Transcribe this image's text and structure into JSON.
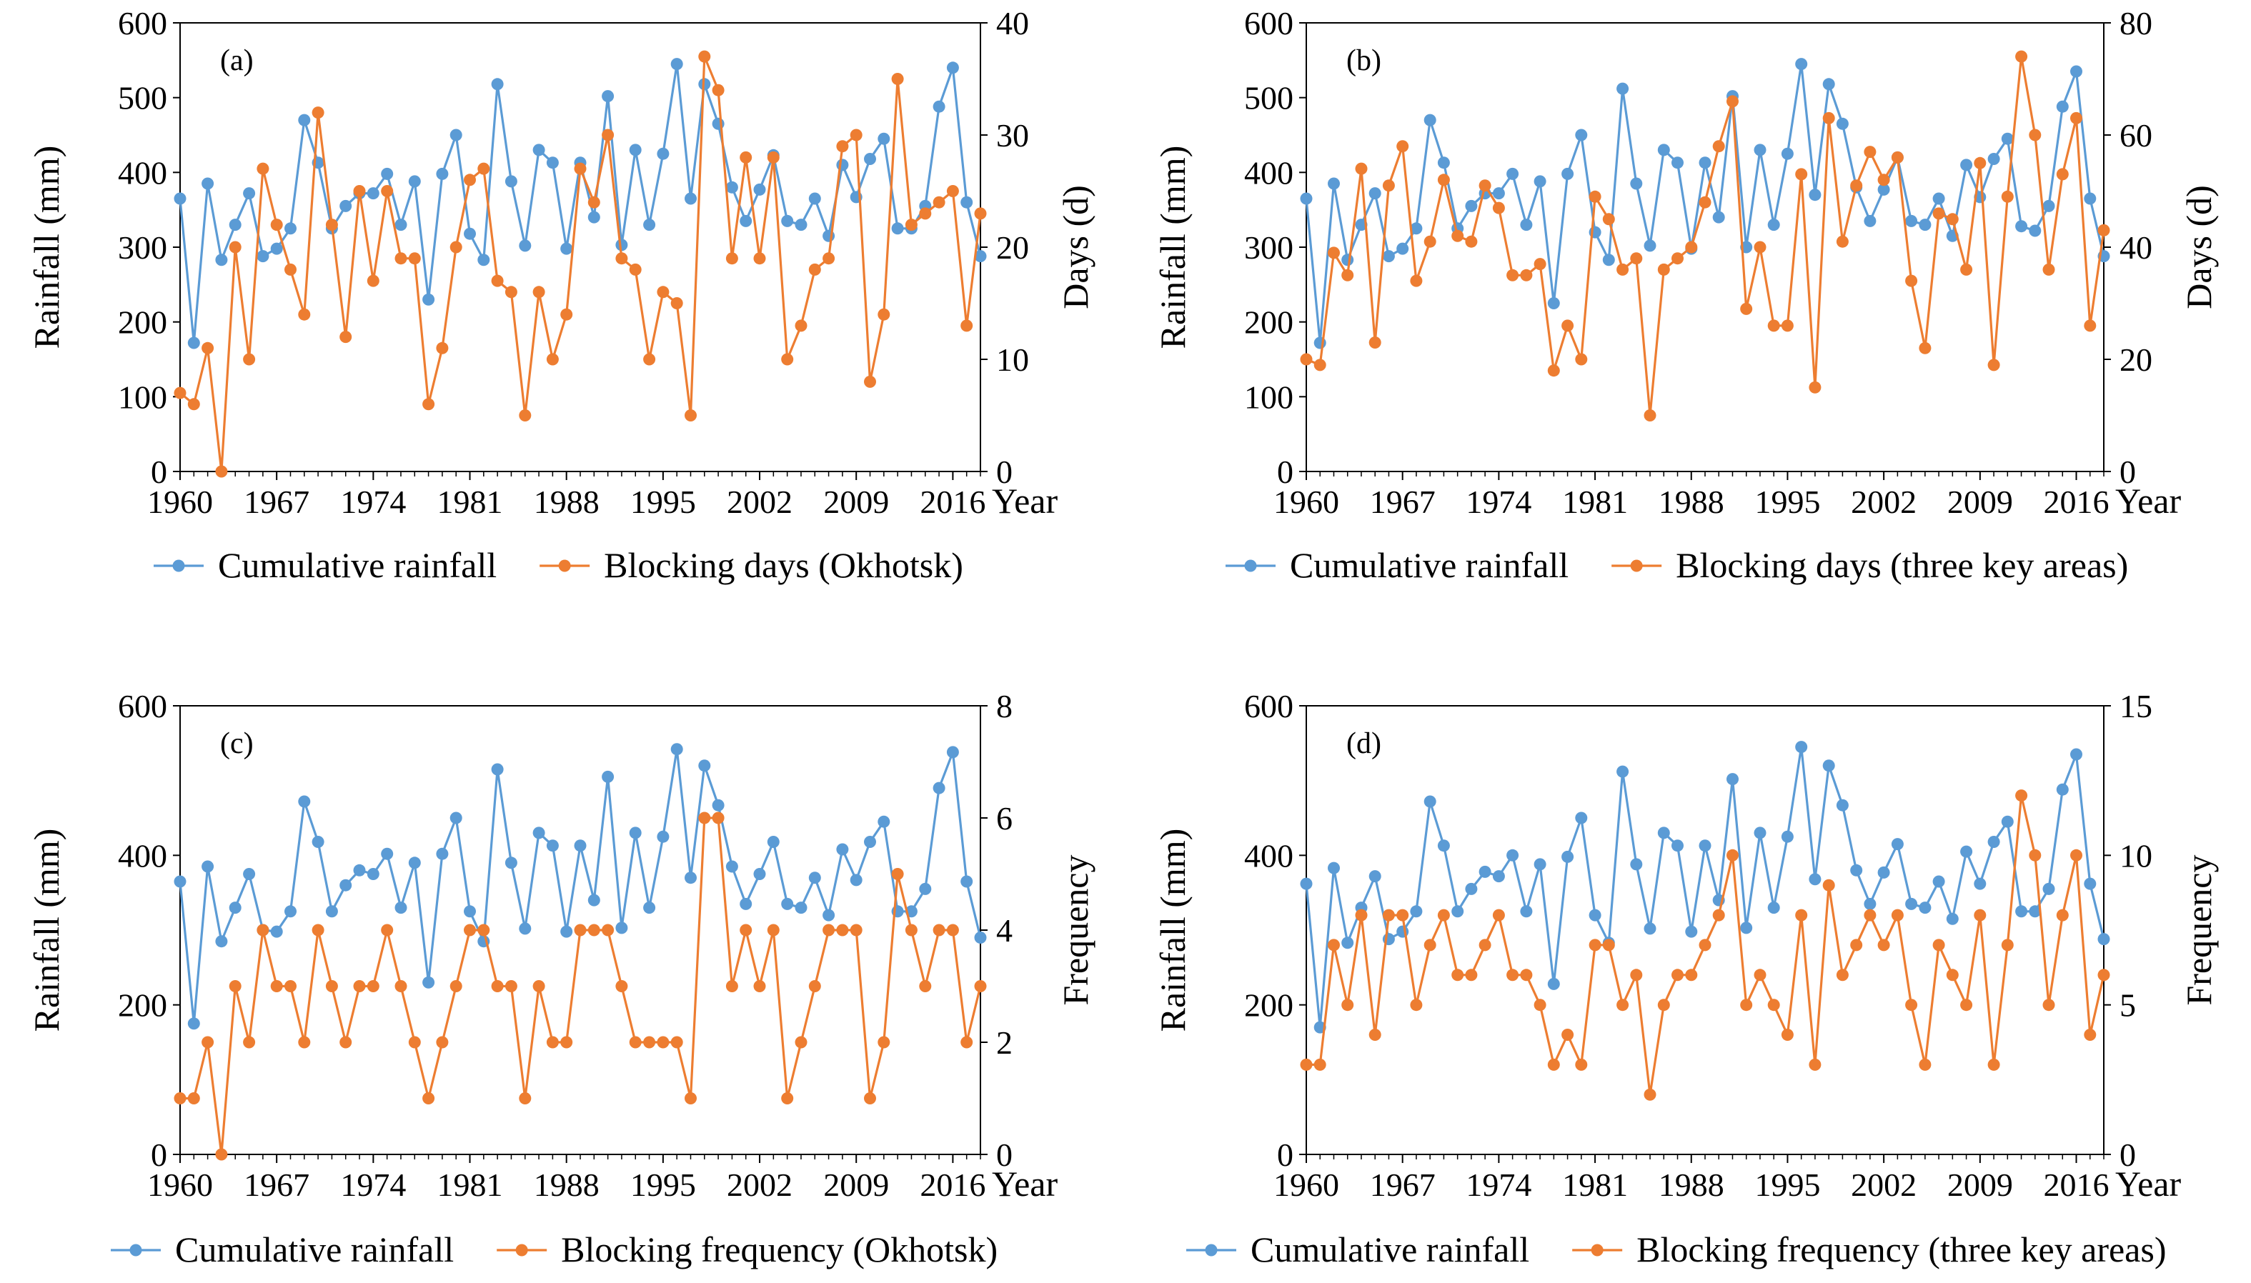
{
  "figure": {
    "x_axis_label": "Year",
    "series_colors": {
      "rainfall": "#5B9BD5",
      "blocking": "#ED7D31"
    }
  },
  "chart_data": [
    {
      "type": "line",
      "panel_label": "(a)",
      "x": [
        1960,
        1961,
        1962,
        1963,
        1964,
        1965,
        1966,
        1967,
        1968,
        1969,
        1970,
        1971,
        1972,
        1973,
        1974,
        1975,
        1976,
        1977,
        1978,
        1979,
        1980,
        1981,
        1982,
        1983,
        1984,
        1985,
        1986,
        1987,
        1988,
        1989,
        1990,
        1991,
        1992,
        1993,
        1994,
        1995,
        1996,
        1997,
        1998,
        1999,
        2000,
        2001,
        2002,
        2003,
        2004,
        2005,
        2006,
        2007,
        2008,
        2009,
        2010,
        2011,
        2012,
        2013,
        2014,
        2015,
        2016,
        2017,
        2018
      ],
      "x_ticks": [
        "1960",
        "1967",
        "1974",
        "1981",
        "1988",
        "1995",
        "2002",
        "2009",
        "2016"
      ],
      "xlabel": "Year",
      "ylabel": "Rainfall (mm)",
      "y2label": "Days (d)",
      "ylim": [
        0,
        600
      ],
      "y_ticks": [
        "0",
        "100",
        "200",
        "300",
        "400",
        "500",
        "600"
      ],
      "y2lim": [
        0,
        40
      ],
      "y2_ticks": [
        "0",
        "10",
        "20",
        "30",
        "40"
      ],
      "series": [
        {
          "name": "Cumulative rainfall",
          "axis": "left",
          "color": "#5B9BD5",
          "values": [
            365,
            172,
            385,
            283,
            330,
            372,
            288,
            298,
            325,
            470,
            413,
            325,
            355,
            372,
            372,
            398,
            330,
            388,
            230,
            398,
            450,
            318,
            283,
            518,
            388,
            302,
            430,
            413,
            298,
            413,
            340,
            502,
            303,
            430,
            330,
            425,
            545,
            365,
            518,
            465,
            380,
            335,
            377,
            423,
            335,
            330,
            365,
            315,
            410,
            367,
            418,
            445,
            325,
            325,
            355,
            488,
            540,
            360,
            288
          ]
        },
        {
          "name": "Blocking days (Okhotsk)",
          "axis": "right",
          "color": "#ED7D31",
          "values": [
            7,
            6,
            11,
            0,
            20,
            10,
            27,
            22,
            18,
            14,
            32,
            22,
            12,
            25,
            17,
            25,
            19,
            19,
            6,
            11,
            20,
            26,
            27,
            17,
            16,
            5,
            16,
            10,
            14,
            27,
            24,
            30,
            19,
            18,
            10,
            16,
            15,
            5,
            37,
            34,
            19,
            28,
            19,
            28,
            10,
            13,
            18,
            19,
            29,
            30,
            8,
            14,
            35,
            22,
            23,
            24,
            25,
            13,
            23
          ]
        }
      ],
      "legend": [
        "Cumulative rainfall",
        "Blocking days (Okhotsk)"
      ]
    },
    {
      "type": "line",
      "panel_label": "(b)",
      "x": [
        1960,
        1961,
        1962,
        1963,
        1964,
        1965,
        1966,
        1967,
        1968,
        1969,
        1970,
        1971,
        1972,
        1973,
        1974,
        1975,
        1976,
        1977,
        1978,
        1979,
        1980,
        1981,
        1982,
        1983,
        1984,
        1985,
        1986,
        1987,
        1988,
        1989,
        1990,
        1991,
        1992,
        1993,
        1994,
        1995,
        1996,
        1997,
        1998,
        1999,
        2000,
        2001,
        2002,
        2003,
        2004,
        2005,
        2006,
        2007,
        2008,
        2009,
        2010,
        2011,
        2012,
        2013,
        2014,
        2015,
        2016,
        2017,
        2018
      ],
      "x_ticks": [
        "1960",
        "1967",
        "1974",
        "1981",
        "1988",
        "1995",
        "2002",
        "2009",
        "2016"
      ],
      "xlabel": "Year",
      "ylabel": "Rainfall (mm)",
      "y2label": "Days (d)",
      "ylim": [
        0,
        600
      ],
      "y_ticks": [
        "0",
        "100",
        "200",
        "300",
        "400",
        "500",
        "600"
      ],
      "y2lim": [
        0,
        80
      ],
      "y2_ticks": [
        "0",
        "20",
        "40",
        "60",
        "80"
      ],
      "series": [
        {
          "name": "Cumulative rainfall",
          "axis": "left",
          "color": "#5B9BD5",
          "values": [
            365,
            172,
            385,
            283,
            330,
            372,
            288,
            298,
            325,
            470,
            413,
            325,
            355,
            372,
            372,
            398,
            330,
            388,
            225,
            398,
            450,
            320,
            283,
            512,
            385,
            302,
            430,
            413,
            298,
            413,
            340,
            502,
            300,
            430,
            330,
            425,
            545,
            370,
            518,
            465,
            380,
            335,
            377,
            420,
            335,
            330,
            365,
            315,
            410,
            367,
            418,
            445,
            328,
            322,
            355,
            488,
            535,
            365,
            288
          ]
        },
        {
          "name": "Blocking days (three key areas)",
          "axis": "right",
          "color": "#ED7D31",
          "values": [
            20,
            19,
            39,
            35,
            54,
            23,
            51,
            58,
            34,
            41,
            52,
            42,
            41,
            51,
            47,
            35,
            35,
            37,
            18,
            26,
            20,
            49,
            45,
            36,
            38,
            10,
            36,
            38,
            40,
            48,
            58,
            66,
            29,
            40,
            26,
            26,
            53,
            15,
            63,
            41,
            51,
            57,
            52,
            56,
            34,
            22,
            46,
            45,
            36,
            55,
            19,
            49,
            74,
            60,
            36,
            53,
            63,
            26,
            43
          ]
        }
      ],
      "legend": [
        "Cumulative rainfall",
        "Blocking days (three key areas)"
      ]
    },
    {
      "type": "line",
      "panel_label": "(c)",
      "x": [
        1960,
        1961,
        1962,
        1963,
        1964,
        1965,
        1966,
        1967,
        1968,
        1969,
        1970,
        1971,
        1972,
        1973,
        1974,
        1975,
        1976,
        1977,
        1978,
        1979,
        1980,
        1981,
        1982,
        1983,
        1984,
        1985,
        1986,
        1987,
        1988,
        1989,
        1990,
        1991,
        1992,
        1993,
        1994,
        1995,
        1996,
        1997,
        1998,
        1999,
        2000,
        2001,
        2002,
        2003,
        2004,
        2005,
        2006,
        2007,
        2008,
        2009,
        2010,
        2011,
        2012,
        2013,
        2014,
        2015,
        2016,
        2017,
        2018
      ],
      "x_ticks": [
        "1960",
        "1967",
        "1974",
        "1981",
        "1988",
        "1995",
        "2002",
        "2009",
        "2016"
      ],
      "xlabel": "Year",
      "ylabel": "Rainfall (mm)",
      "y2label": "Frequency",
      "ylim": [
        0,
        600
      ],
      "y_ticks": [
        "0",
        "200",
        "400",
        "600"
      ],
      "y2lim": [
        0,
        8
      ],
      "y2_ticks": [
        "0",
        "2",
        "4",
        "6",
        "8"
      ],
      "series": [
        {
          "name": "Cumulative rainfall",
          "axis": "left",
          "color": "#5B9BD5",
          "values": [
            365,
            175,
            385,
            285,
            330,
            375,
            300,
            298,
            325,
            472,
            418,
            325,
            360,
            380,
            375,
            402,
            330,
            390,
            230,
            402,
            450,
            325,
            285,
            515,
            390,
            302,
            430,
            413,
            298,
            413,
            340,
            505,
            303,
            430,
            330,
            425,
            542,
            370,
            520,
            467,
            385,
            335,
            375,
            418,
            335,
            330,
            370,
            320,
            408,
            367,
            418,
            445,
            325,
            325,
            355,
            490,
            538,
            365,
            290
          ]
        },
        {
          "name": "Blocking frequency (Okhotsk)",
          "axis": "right",
          "color": "#ED7D31",
          "values": [
            1,
            1,
            2,
            0,
            3,
            2,
            4,
            3,
            3,
            2,
            4,
            3,
            2,
            3,
            3,
            4,
            3,
            2,
            1,
            2,
            3,
            4,
            4,
            3,
            3,
            1,
            3,
            2,
            2,
            4,
            4,
            4,
            3,
            2,
            2,
            2,
            2,
            1,
            6,
            6,
            3,
            4,
            3,
            4,
            1,
            2,
            3,
            4,
            4,
            4,
            1,
            2,
            5,
            4,
            3,
            4,
            4,
            2,
            3
          ]
        }
      ],
      "legend": [
        "Cumulative rainfall",
        "Blocking frequency (Okhotsk)"
      ]
    },
    {
      "type": "line",
      "panel_label": "(d)",
      "x": [
        1960,
        1961,
        1962,
        1963,
        1964,
        1965,
        1966,
        1967,
        1968,
        1969,
        1970,
        1971,
        1972,
        1973,
        1974,
        1975,
        1976,
        1977,
        1978,
        1979,
        1980,
        1981,
        1982,
        1983,
        1984,
        1985,
        1986,
        1987,
        1988,
        1989,
        1990,
        1991,
        1992,
        1993,
        1994,
        1995,
        1996,
        1997,
        1998,
        1999,
        2000,
        2001,
        2002,
        2003,
        2004,
        2005,
        2006,
        2007,
        2008,
        2009,
        2010,
        2011,
        2012,
        2013,
        2014,
        2015,
        2016,
        2017,
        2018
      ],
      "x_ticks": [
        "1960",
        "1967",
        "1974",
        "1981",
        "1988",
        "1995",
        "2002",
        "2009",
        "2016"
      ],
      "xlabel": "Year",
      "ylabel": "Rainfall (mm)",
      "y2label": "Frequency",
      "ylim": [
        0,
        600
      ],
      "y_ticks": [
        "0",
        "200",
        "400",
        "600"
      ],
      "y2lim": [
        0,
        15
      ],
      "y2_ticks": [
        "0",
        "5",
        "10",
        "15"
      ],
      "series": [
        {
          "name": "Cumulative rainfall",
          "axis": "left",
          "color": "#5B9BD5",
          "values": [
            362,
            170,
            383,
            283,
            330,
            372,
            288,
            298,
            325,
            472,
            413,
            325,
            355,
            378,
            372,
            400,
            325,
            388,
            228,
            398,
            450,
            320,
            283,
            512,
            388,
            302,
            430,
            413,
            298,
            413,
            340,
            502,
            303,
            430,
            330,
            425,
            545,
            368,
            520,
            467,
            380,
            335,
            377,
            415,
            335,
            330,
            365,
            315,
            405,
            362,
            418,
            445,
            325,
            325,
            355,
            488,
            535,
            362,
            288
          ]
        },
        {
          "name": "Blocking frequency (three key areas)",
          "axis": "right",
          "color": "#ED7D31",
          "values": [
            3,
            3,
            7,
            5,
            8,
            4,
            8,
            8,
            5,
            7,
            8,
            6,
            6,
            7,
            8,
            6,
            6,
            5,
            3,
            4,
            3,
            7,
            7,
            5,
            6,
            2,
            5,
            6,
            6,
            7,
            8,
            10,
            5,
            6,
            5,
            4,
            8,
            3,
            9,
            6,
            7,
            8,
            7,
            8,
            5,
            3,
            7,
            6,
            5,
            8,
            3,
            7,
            12,
            10,
            5,
            8,
            10,
            4,
            6
          ]
        }
      ],
      "legend": [
        "Cumulative rainfall",
        "Blocking frequency (three key areas)"
      ]
    }
  ]
}
